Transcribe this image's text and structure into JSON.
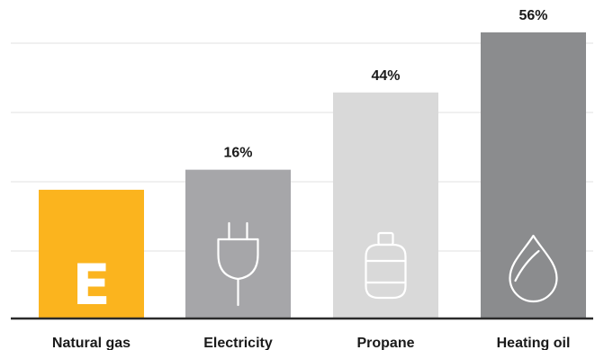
{
  "chart_data": {
    "type": "bar",
    "categories": [
      "Natural gas",
      "Electricity",
      "Propane",
      "Heating oil"
    ],
    "values": [
      null,
      16,
      44,
      56
    ],
    "value_labels": [
      "",
      "16%",
      "44%",
      "56%"
    ],
    "bar_levels": [
      0.45,
      0.52,
      0.79,
      1.0
    ],
    "colors": [
      "#fbb41e",
      "#a6a6a9",
      "#d9d9d9",
      "#8b8c8e"
    ],
    "icons": [
      "letter-e-icon",
      "plug-icon",
      "propane-tank-icon",
      "oil-drop-icon"
    ],
    "icon_text": [
      "E",
      "",
      "",
      ""
    ],
    "grid": true,
    "title": "",
    "xlabel": "",
    "ylabel": ""
  }
}
